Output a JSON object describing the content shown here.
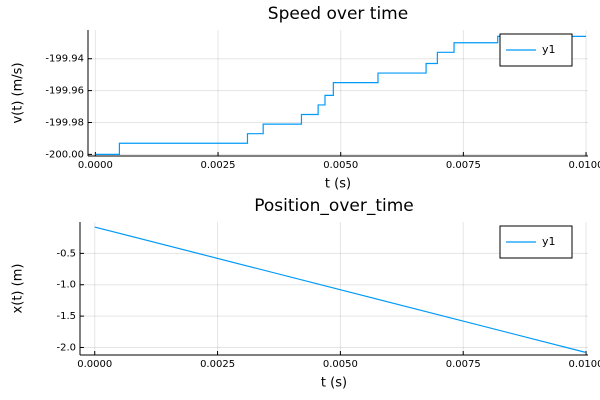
{
  "chart_data": [
    {
      "type": "line",
      "step": "post",
      "title": "Speed over time",
      "xlabel": "t (s)",
      "ylabel": "v(t) (m/s)",
      "x": [
        0,
        0.00049,
        0.0031,
        0.00342,
        0.0042,
        0.00454,
        0.00468,
        0.00485,
        0.00576,
        0.00674,
        0.00697,
        0.00731,
        0.0082,
        0.01
      ],
      "series": [
        {
          "name": "y1",
          "color": "#009af9",
          "values": [
            -200.0,
            -199.993,
            -199.987,
            -199.981,
            -199.975,
            -199.969,
            -199.963,
            -199.955,
            -199.949,
            -199.943,
            -199.936,
            -199.93,
            -199.926,
            -199.926
          ]
        }
      ],
      "xlim": [
        -0.00015,
        0.01004
      ],
      "ylim": [
        -200.001,
        -199.922
      ],
      "xticks": [
        {
          "value": 0,
          "label": "0.0000"
        },
        {
          "value": 0.0025,
          "label": "0.0025"
        },
        {
          "value": 0.005,
          "label": "0.0050"
        },
        {
          "value": 0.0075,
          "label": "0.0075"
        },
        {
          "value": 0.01,
          "label": "0.0100"
        }
      ],
      "yticks": [
        {
          "value": -200.0,
          "label": "-200.00"
        },
        -199.98,
        -199.96,
        -199.94
      ],
      "grid": true,
      "legend": "top-right"
    },
    {
      "type": "line",
      "title": "Position_over_time",
      "xlabel": "t (s)",
      "ylabel": "x(t) (m)",
      "x": [
        0,
        0.01
      ],
      "series": [
        {
          "name": "y1",
          "color": "#009af9",
          "values": [
            -0.08,
            -2.08
          ]
        }
      ],
      "xlim": [
        -0.0003,
        0.01004
      ],
      "ylim": [
        -2.12,
        0.0
      ],
      "xticks": [
        {
          "value": 0,
          "label": "0.0000"
        },
        {
          "value": 0.0025,
          "label": "0.0025"
        },
        {
          "value": 0.005,
          "label": "0.0050"
        },
        {
          "value": 0.0075,
          "label": "0.0075"
        },
        {
          "value": 0.01,
          "label": "0.0100"
        }
      ],
      "yticks": [
        -0.5,
        {
          "value": -1.0,
          "label": "-1.0"
        },
        -1.5,
        {
          "value": -2.0,
          "label": "-2.0"
        }
      ],
      "grid": true,
      "legend": "top-right"
    }
  ]
}
